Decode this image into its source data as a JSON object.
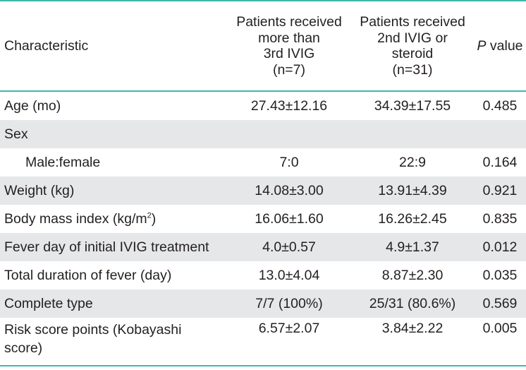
{
  "table": {
    "headers": {
      "characteristic": "Characteristic",
      "group1": "Patients received\nmore than\n3rd IVIG\n(n=7)",
      "group2": "Patients received\n2nd IVIG or\nsteroid\n(n=31)",
      "p_italic": "P",
      "p_rest": " value"
    },
    "rows": [
      {
        "label": "Age (mo)",
        "v1": "27.43±12.16",
        "v2": "34.39±17.55",
        "p": "0.485"
      },
      {
        "label": "Sex",
        "v1": "",
        "v2": "",
        "p": ""
      },
      {
        "label": "Male:female",
        "v1": "7:0",
        "v2": "22:9",
        "p": "0.164"
      },
      {
        "label": "Weight (kg)",
        "v1": "14.08±3.00",
        "v2": "13.91±4.39",
        "p": "0.921"
      },
      {
        "label": "Body mass index (kg/m",
        "label_sup": "2",
        "label_end": ")",
        "v1": "16.06±1.60",
        "v2": "16.26±2.45",
        "p": "0.835"
      },
      {
        "label": "Fever day of initial IVIG treatment",
        "v1": "4.0±0.57",
        "v2": "4.9±1.37",
        "p": "0.012"
      },
      {
        "label": "Total duration of fever (day)",
        "v1": "13.0±4.04",
        "v2": "8.87±2.30",
        "p": "0.035"
      },
      {
        "label": "Complete type",
        "v1": "7/7 (100%)",
        "v2": "25/31 (80.6%)",
        "p": "0.569"
      },
      {
        "label": "Risk score points (Kobayashi\n  score)",
        "v1": "6.57±2.07",
        "v2": "3.84±2.22",
        "p": "0.005"
      }
    ]
  },
  "colors": {
    "rule": "#3fb7ad",
    "shade": "#e6e7e8",
    "text": "#231f20"
  }
}
